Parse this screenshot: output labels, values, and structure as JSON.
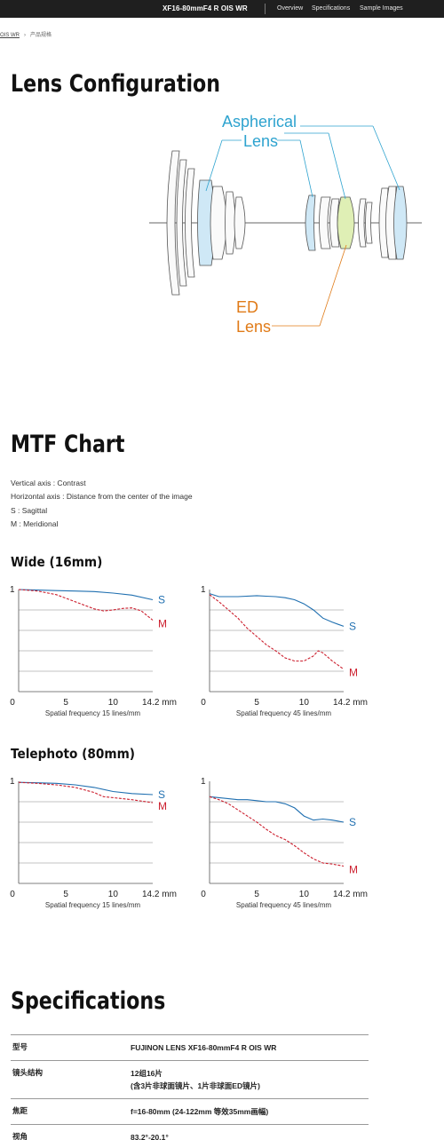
{
  "header": {
    "product": "XF16-80mmF4 R OIS WR",
    "nav": [
      "Overview",
      "Specifications",
      "Sample Images"
    ]
  },
  "breadcrumb": {
    "items": [
      "OIS WR",
      "产品规格"
    ]
  },
  "lens_config": {
    "title": "Lens Configuration",
    "aspherical_label": [
      "Aspherical",
      "Lens"
    ],
    "ed_label": [
      "ED",
      "Lens"
    ],
    "colors": {
      "aspherical": "#2ea3cf",
      "ed": "#e07b18",
      "aspherical_fill": "#cfe8f6",
      "ed_fill": "#dfefb5"
    }
  },
  "mtf": {
    "title": "MTF Chart",
    "description": [
      "Vertical axis : Contrast",
      "Horizontal axis : Distance from the center of the image",
      "S : Sagittal",
      "M : Meridional"
    ],
    "colors": {
      "sagittal": "#1f6fb0",
      "meridional": "#cc1f2e"
    },
    "groups": [
      {
        "title": "Wide (16mm)",
        "charts": [
          {
            "caption": "Spatial frequency 15 lines/mm",
            "ylabel": "1",
            "xticks": [
              "0",
              "5",
              "10",
              "14.2 mm"
            ],
            "xlim": [
              0,
              14.2
            ],
            "ylim": [
              0,
              1
            ],
            "series": [
              {
                "name": "S",
                "x": [
                  0,
                  2,
                  4,
                  6,
                  8,
                  10,
                  12,
                  14.2
                ],
                "y": [
                  1.0,
                  0.995,
                  0.99,
                  0.985,
                  0.98,
                  0.965,
                  0.945,
                  0.9
                ]
              },
              {
                "name": "M",
                "x": [
                  0,
                  2,
                  4,
                  6,
                  8,
                  9,
                  10,
                  11,
                  12,
                  13,
                  14.2
                ],
                "y": [
                  1.0,
                  0.985,
                  0.95,
                  0.88,
                  0.81,
                  0.79,
                  0.8,
                  0.815,
                  0.82,
                  0.79,
                  0.7
                ]
              }
            ]
          },
          {
            "caption": "Spatial frequency 45 lines/mm",
            "ylabel": "1",
            "xticks": [
              "0",
              "5",
              "10",
              "14.2 mm"
            ],
            "xlim": [
              0,
              14.2
            ],
            "ylim": [
              0,
              1
            ],
            "series": [
              {
                "name": "S",
                "x": [
                  0,
                  1,
                  3,
                  5,
                  6,
                  7,
                  8,
                  9,
                  10,
                  11,
                  12,
                  13,
                  14.2
                ],
                "y": [
                  0.96,
                  0.93,
                  0.93,
                  0.94,
                  0.935,
                  0.93,
                  0.92,
                  0.9,
                  0.86,
                  0.8,
                  0.72,
                  0.68,
                  0.64
                ]
              },
              {
                "name": "M",
                "x": [
                  0,
                  1,
                  2,
                  3,
                  4,
                  5,
                  6,
                  7,
                  8,
                  9,
                  10,
                  11,
                  11.5,
                  12,
                  13,
                  14.2
                ],
                "y": [
                  0.95,
                  0.88,
                  0.8,
                  0.72,
                  0.62,
                  0.54,
                  0.46,
                  0.4,
                  0.33,
                  0.3,
                  0.3,
                  0.35,
                  0.4,
                  0.38,
                  0.3,
                  0.22
                ]
              }
            ]
          }
        ]
      },
      {
        "title": "Telephoto (80mm)",
        "charts": [
          {
            "caption": "Spatial frequency 15 lines/mm",
            "ylabel": "1",
            "xticks": [
              "0",
              "5",
              "10",
              "14.2 mm"
            ],
            "xlim": [
              0,
              14.2
            ],
            "ylim": [
              0,
              1
            ],
            "series": [
              {
                "name": "S",
                "x": [
                  0,
                  2,
                  4,
                  6,
                  8,
                  10,
                  12,
                  14.2
                ],
                "y": [
                  0.99,
                  0.985,
                  0.98,
                  0.965,
                  0.94,
                  0.9,
                  0.88,
                  0.87
                ]
              },
              {
                "name": "M",
                "x": [
                  0,
                  2,
                  4,
                  6,
                  8,
                  9,
                  10,
                  12,
                  14.2
                ],
                "y": [
                  0.99,
                  0.98,
                  0.965,
                  0.94,
                  0.89,
                  0.85,
                  0.84,
                  0.82,
                  0.79
                ]
              }
            ]
          },
          {
            "caption": "Spatial frequency 45 lines/mm",
            "ylabel": "1",
            "xticks": [
              "0",
              "5",
              "10",
              "14.2 mm"
            ],
            "xlim": [
              0,
              14.2
            ],
            "ylim": [
              0,
              1
            ],
            "series": [
              {
                "name": "S",
                "x": [
                  0,
                  1,
                  2,
                  3,
                  4,
                  5,
                  6,
                  7,
                  8,
                  9,
                  10,
                  11,
                  12,
                  13,
                  14.2
                ],
                "y": [
                  0.85,
                  0.84,
                  0.83,
                  0.82,
                  0.82,
                  0.81,
                  0.8,
                  0.8,
                  0.78,
                  0.74,
                  0.66,
                  0.62,
                  0.63,
                  0.62,
                  0.6
                ]
              },
              {
                "name": "M",
                "x": [
                  0,
                  1,
                  2,
                  3,
                  4,
                  5,
                  6,
                  7,
                  8,
                  9,
                  10,
                  11,
                  12,
                  13,
                  14.2
                ],
                "y": [
                  0.85,
                  0.82,
                  0.78,
                  0.72,
                  0.66,
                  0.6,
                  0.53,
                  0.47,
                  0.43,
                  0.37,
                  0.3,
                  0.24,
                  0.2,
                  0.19,
                  0.17
                ]
              }
            ]
          }
        ]
      }
    ]
  },
  "specifications": {
    "title": "Specifications",
    "rows": [
      {
        "key": "型号",
        "value": [
          "FUJINON LENS XF16-80mmF4 R OIS WR"
        ]
      },
      {
        "key": "镜头结构",
        "value": [
          "12组16片",
          "(含3片非球面镜片、1片非球面ED镜片)"
        ]
      },
      {
        "key": "焦距",
        "value": [
          "f=16-80mm (24-122mm 等效35mm画幅)"
        ]
      },
      {
        "key": "视角",
        "value": [
          "83.2°-20.1°"
        ]
      }
    ]
  }
}
